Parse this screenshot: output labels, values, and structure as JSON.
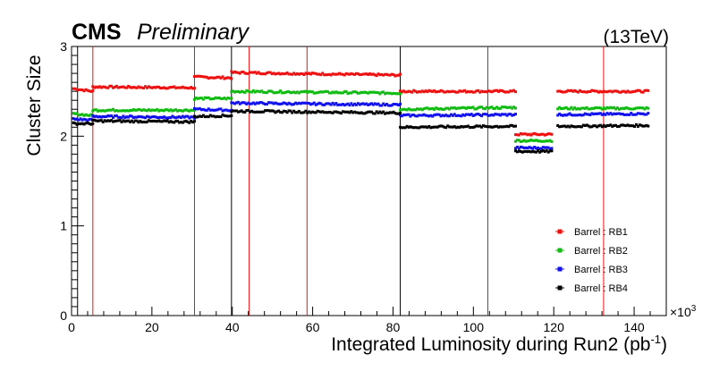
{
  "header": {
    "experiment": "CMS",
    "status": "Preliminary",
    "energy": "(13TeV)"
  },
  "chart_data": {
    "type": "scatter",
    "xlabel": "Integrated Luminosity during Run2 (pb",
    "xlabel_sup": "-1",
    "xlabel_close": ")",
    "x_multiplier": "×10",
    "x_multiplier_exp": "3",
    "ylabel": "Cluster Size",
    "xlim": [
      0,
      148
    ],
    "ylim": [
      0,
      3
    ],
    "x_ticks": [
      "0",
      "20",
      "40",
      "60",
      "80",
      "100",
      "120",
      "140"
    ],
    "x_tick_values": [
      0,
      20,
      40,
      60,
      80,
      100,
      120,
      140
    ],
    "y_ticks": [
      "0",
      "1",
      "2",
      "3"
    ],
    "y_tick_values": [
      0,
      1,
      2,
      3
    ],
    "grid": false,
    "legend_position": "bottom-right",
    "vlines_black": [
      1.5,
      39.8,
      81.8
    ],
    "vlines_red": [
      5.3,
      30.6,
      44.2,
      58.6,
      103.6,
      132.4
    ],
    "series": [
      {
        "name": "Barrel : RB1",
        "color": "#ee1111",
        "segments": [
          {
            "x": [
              0.5,
              5.3
            ],
            "y": [
              2.53,
              2.5
            ]
          },
          {
            "x": [
              5.3,
              30.6
            ],
            "y": [
              2.55,
              2.54
            ]
          },
          {
            "x": [
              30.6,
              39.8
            ],
            "y": [
              2.66,
              2.65
            ]
          },
          {
            "x": [
              39.8,
              81.8
            ],
            "y": [
              2.71,
              2.68
            ]
          },
          {
            "x": [
              81.8,
              110.5
            ],
            "y": [
              2.5,
              2.5
            ]
          },
          {
            "x": [
              110.5,
              119.5
            ],
            "y": [
              2.02,
              2.02
            ]
          },
          {
            "x": [
              121.0,
              143.5
            ],
            "y": [
              2.5,
              2.5
            ]
          }
        ]
      },
      {
        "name": "Barrel : RB2",
        "color": "#11bb11",
        "segments": [
          {
            "x": [
              0.5,
              5.3
            ],
            "y": [
              2.25,
              2.23
            ]
          },
          {
            "x": [
              5.3,
              30.6
            ],
            "y": [
              2.29,
              2.29
            ]
          },
          {
            "x": [
              30.6,
              39.8
            ],
            "y": [
              2.42,
              2.42
            ]
          },
          {
            "x": [
              39.8,
              81.8
            ],
            "y": [
              2.5,
              2.48
            ]
          },
          {
            "x": [
              81.8,
              110.5
            ],
            "y": [
              2.3,
              2.32
            ]
          },
          {
            "x": [
              110.5,
              119.5
            ],
            "y": [
              1.95,
              1.95
            ]
          },
          {
            "x": [
              121.0,
              143.5
            ],
            "y": [
              2.31,
              2.31
            ]
          }
        ]
      },
      {
        "name": "Barrel : RB3",
        "color": "#1111ee",
        "segments": [
          {
            "x": [
              0.5,
              5.3
            ],
            "y": [
              2.19,
              2.18
            ]
          },
          {
            "x": [
              5.3,
              30.6
            ],
            "y": [
              2.22,
              2.21
            ]
          },
          {
            "x": [
              30.6,
              39.8
            ],
            "y": [
              2.3,
              2.29
            ]
          },
          {
            "x": [
              39.8,
              81.8
            ],
            "y": [
              2.37,
              2.35
            ]
          },
          {
            "x": [
              81.8,
              110.5
            ],
            "y": [
              2.23,
              2.24
            ]
          },
          {
            "x": [
              110.5,
              119.5
            ],
            "y": [
              1.87,
              1.87
            ]
          },
          {
            "x": [
              121.0,
              143.5
            ],
            "y": [
              2.24,
              2.25
            ]
          }
        ]
      },
      {
        "name": "Barrel : RB4",
        "color": "#000000",
        "segments": [
          {
            "x": [
              0.5,
              5.3
            ],
            "y": [
              2.14,
              2.14
            ]
          },
          {
            "x": [
              5.3,
              30.6
            ],
            "y": [
              2.17,
              2.16
            ]
          },
          {
            "x": [
              30.6,
              39.8
            ],
            "y": [
              2.22,
              2.23
            ]
          },
          {
            "x": [
              39.8,
              81.8
            ],
            "y": [
              2.28,
              2.26
            ]
          },
          {
            "x": [
              81.8,
              110.5
            ],
            "y": [
              2.1,
              2.11
            ]
          },
          {
            "x": [
              110.5,
              119.5
            ],
            "y": [
              1.83,
              1.83
            ]
          },
          {
            "x": [
              121.0,
              143.5
            ],
            "y": [
              2.11,
              2.12
            ]
          }
        ]
      }
    ]
  }
}
